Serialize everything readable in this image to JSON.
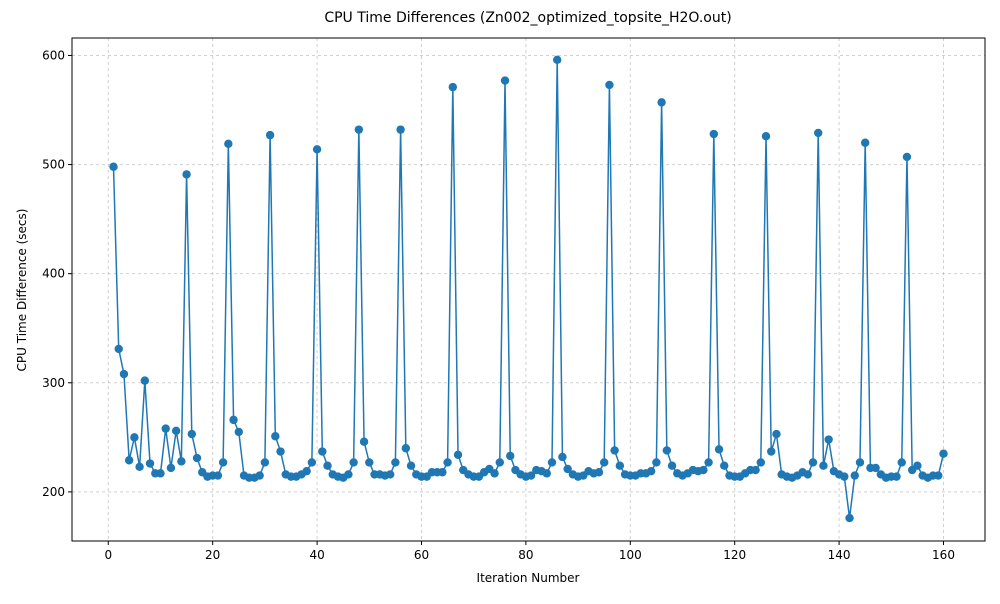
{
  "chart_data": {
    "type": "line",
    "title": "CPU Time Differences (Zn002_optimized_topsite_H2O.out)",
    "x_label": "Iteration Number",
    "y_label": "CPU Time Difference (secs)",
    "x": [
      1,
      2,
      3,
      4,
      5,
      6,
      7,
      8,
      9,
      10,
      11,
      12,
      13,
      14,
      15,
      16,
      17,
      18,
      19,
      20,
      21,
      22,
      23,
      24,
      25,
      26,
      27,
      28,
      29,
      30,
      31,
      32,
      33,
      34,
      35,
      36,
      37,
      38,
      39,
      40,
      41,
      42,
      43,
      44,
      45,
      46,
      47,
      48,
      49,
      50,
      51,
      52,
      53,
      54,
      55,
      56,
      57,
      58,
      59,
      60,
      61,
      62,
      63,
      64,
      65,
      66,
      67,
      68,
      69,
      70,
      71,
      72,
      73,
      74,
      75,
      76,
      77,
      78,
      79,
      80,
      81,
      82,
      83,
      84,
      85,
      86,
      87,
      88,
      89,
      90,
      91,
      92,
      93,
      94,
      95,
      96,
      97,
      98,
      99,
      100,
      101,
      102,
      103,
      104,
      105,
      106,
      107,
      108,
      109,
      110,
      111,
      112,
      113,
      114,
      115,
      116,
      117,
      118,
      119,
      120,
      121,
      122,
      123,
      124,
      125,
      126,
      127,
      128,
      129,
      130,
      131,
      132,
      133,
      134,
      135,
      136,
      137,
      138,
      139,
      140,
      141,
      142,
      143,
      144,
      145,
      146,
      147,
      148,
      149,
      150,
      151,
      152,
      153,
      154,
      155,
      156,
      157,
      158,
      159,
      160
    ],
    "series": [
      {
        "name": "CPU Time Difference",
        "color": "#1f77b4",
        "values": [
          498,
          331,
          308,
          229,
          250,
          223,
          302,
          226,
          217,
          217,
          258,
          222,
          256,
          228,
          491,
          253,
          231,
          218,
          214,
          215,
          215,
          227,
          519,
          266,
          255,
          215,
          213,
          213,
          215,
          227,
          527,
          251,
          237,
          216,
          214,
          214,
          216,
          219,
          227,
          514,
          237,
          224,
          216,
          214,
          213,
          216,
          227,
          532,
          246,
          227,
          216,
          216,
          215,
          216,
          227,
          532,
          240,
          224,
          216,
          214,
          214,
          218,
          218,
          218,
          227,
          571,
          234,
          220,
          216,
          214,
          214,
          218,
          221,
          217,
          227,
          577,
          233,
          220,
          216,
          214,
          215,
          220,
          219,
          217,
          227,
          596,
          232,
          221,
          216,
          214,
          215,
          219,
          217,
          218,
          227,
          573,
          238,
          224,
          216,
          215,
          215,
          217,
          217,
          219,
          227,
          557,
          238,
          224,
          217,
          215,
          217,
          220,
          219,
          220,
          227,
          528,
          239,
          224,
          215,
          214,
          214,
          217,
          220,
          220,
          227,
          526,
          237,
          253,
          216,
          214,
          213,
          215,
          218,
          216,
          227,
          529,
          224,
          248,
          219,
          216,
          214,
          176,
          215,
          227,
          520,
          222,
          222,
          216,
          213,
          214,
          214,
          227,
          507,
          220,
          224,
          215,
          213,
          215,
          215,
          235
        ]
      }
    ],
    "xlim": [
      -6.95,
      167.95
    ],
    "ylim": [
      155,
      616
    ],
    "xticks": [
      0,
      20,
      40,
      60,
      80,
      100,
      120,
      140,
      160
    ],
    "yticks": [
      200,
      300,
      400,
      500,
      600
    ],
    "grid": true
  }
}
